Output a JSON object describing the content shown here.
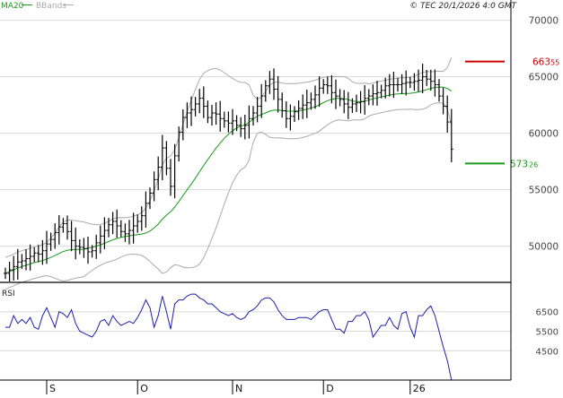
{
  "header": {
    "legend_ma": "MA20",
    "legend_bb": "BBands",
    "copyright": "© TEC 20/1/2026 4:0 GMT"
  },
  "colors": {
    "background": "#ffffff",
    "price_bar": "#000000",
    "ma20": "#1a9a1a",
    "bbands": "#aaaaaa",
    "rsi": "#1f1fa8",
    "resistance": "#cc0000",
    "support": "#1a9a1a",
    "grid": "#d8d8d8",
    "axis": "#000000",
    "text": "#444444"
  },
  "chart_data": [
    {
      "type": "ohlc",
      "name": "price",
      "ylim": [
        46800,
        71800
      ],
      "yticks": [
        {
          "value": 50000,
          "label": "50000"
        },
        {
          "value": 55000,
          "label": "55000"
        },
        {
          "value": 60000,
          "label": "60000"
        },
        {
          "value": 65000,
          "label": "65000"
        },
        {
          "value": 70000,
          "label": "70000"
        }
      ],
      "xticks": [
        {
          "index": 10,
          "label": "S"
        },
        {
          "index": 32,
          "label": "O"
        },
        {
          "index": 55,
          "label": "N"
        },
        {
          "index": 77,
          "label": "D"
        },
        {
          "index": 98,
          "label": "26"
        }
      ],
      "n_points": 109,
      "close": [
        47600,
        47900,
        48200,
        48600,
        48700,
        48900,
        49100,
        49400,
        49300,
        49600,
        50200,
        50600,
        51200,
        51700,
        52000,
        51300,
        50500,
        50000,
        49900,
        49800,
        49500,
        49600,
        50300,
        50900,
        51400,
        51900,
        52200,
        51800,
        51300,
        51100,
        51400,
        51800,
        52200,
        52700,
        53800,
        54700,
        55900,
        57000,
        58700,
        56900,
        55300,
        58000,
        60100,
        61400,
        61800,
        62100,
        62600,
        63100,
        62400,
        61400,
        61800,
        61700,
        61300,
        61100,
        60900,
        61100,
        60700,
        60400,
        60700,
        61300,
        61800,
        62400,
        63300,
        64200,
        64800,
        63900,
        63000,
        62000,
        61300,
        61500,
        61900,
        62200,
        62500,
        62700,
        63000,
        63400,
        64000,
        64300,
        64200,
        63600,
        63300,
        63000,
        62600,
        62300,
        62600,
        62700,
        62800,
        63100,
        63300,
        63500,
        63600,
        63800,
        64200,
        64300,
        64300,
        64300,
        64400,
        64500,
        64500,
        64600,
        64700,
        65000,
        64800,
        64600,
        64300,
        63300,
        62400,
        61000,
        58600
      ],
      "resistance": {
        "value": 66355,
        "label": "663",
        "label_suffix": "55"
      },
      "support": {
        "value": 57326,
        "label": "573",
        "label_suffix": "26"
      }
    },
    {
      "type": "line",
      "name": "RSI",
      "title": "RSI",
      "ylim": [
        30,
        80
      ],
      "yticks": [
        {
          "value": 45,
          "label": "4500"
        },
        {
          "value": 55,
          "label": "5500"
        },
        {
          "value": 65,
          "label": "6500"
        }
      ],
      "values": [
        57,
        57,
        63,
        59,
        61,
        59,
        62,
        57,
        56,
        63,
        67,
        62,
        57,
        65,
        64,
        62,
        66,
        59,
        55,
        54,
        53,
        52,
        55,
        60,
        61,
        58,
        63,
        60,
        58,
        59,
        60,
        59,
        62,
        66,
        71,
        67,
        57,
        63,
        73,
        65,
        56,
        69,
        71,
        71,
        73,
        74,
        74,
        72,
        71,
        69,
        69,
        67,
        65,
        64,
        63,
        64,
        62,
        61,
        62,
        65,
        66,
        68,
        71,
        72,
        72,
        70,
        66,
        63,
        61,
        61,
        61,
        62,
        62,
        62,
        61,
        63,
        65,
        66,
        66,
        61,
        56,
        56,
        54,
        60,
        60,
        63,
        63,
        65,
        61,
        52,
        55,
        58,
        58,
        62,
        58,
        56,
        64,
        65,
        57,
        52,
        63,
        63,
        66,
        68,
        63,
        55,
        47,
        40,
        30
      ]
    }
  ]
}
